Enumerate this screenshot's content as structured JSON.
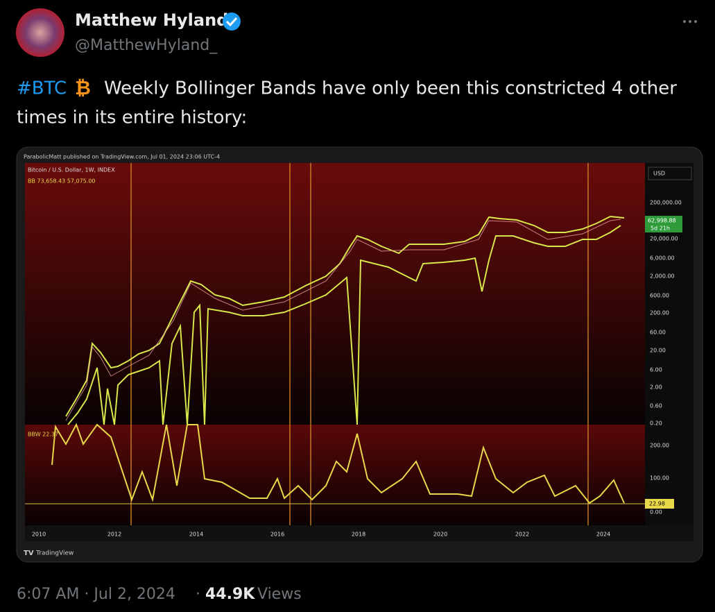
{
  "post": {
    "author": {
      "name": "Matthew Hyland",
      "handle": "@MatthewHyland_"
    },
    "text": {
      "hashtag": "#BTC",
      "emoji": "₿",
      "line1": "Weekly Bollinger Bands have only been this constricted 4 other",
      "line2": "times in its entire history:"
    },
    "image": {
      "publisher": "ParabolicMatt published on TradingView.com, Jul 01, 2024 23:06 UTC-4",
      "symbol": "Bitcoin / U.S. Dollar, 1W, INDEX",
      "indicator": "BB  73,658.43  57,075.00",
      "currency": "USD",
      "price_axis": [
        "200,000.00",
        "20,000.00",
        "6,000.00",
        "2,000.00",
        "600.00",
        "200.00",
        "60.00",
        "20.00",
        "6.00",
        "2.00",
        "0.60",
        "0.20"
      ],
      "price_tag": "62,998.88",
      "countdown": "5d 21h",
      "bbw_label": "BBW  22.37",
      "bbw_axis": [
        "200.00",
        "100.00",
        "0.00"
      ],
      "bbw_tag": "22.98",
      "years": [
        "2010",
        "2012",
        "2014",
        "2016",
        "2018",
        "2020",
        "2022",
        "2024"
      ],
      "brand": "TradingView"
    },
    "footer": {
      "timestamp": "6:07 AM · Jul 2, 2024",
      "separator": "·",
      "views_count": "44.9K",
      "views_label": "Views"
    }
  }
}
